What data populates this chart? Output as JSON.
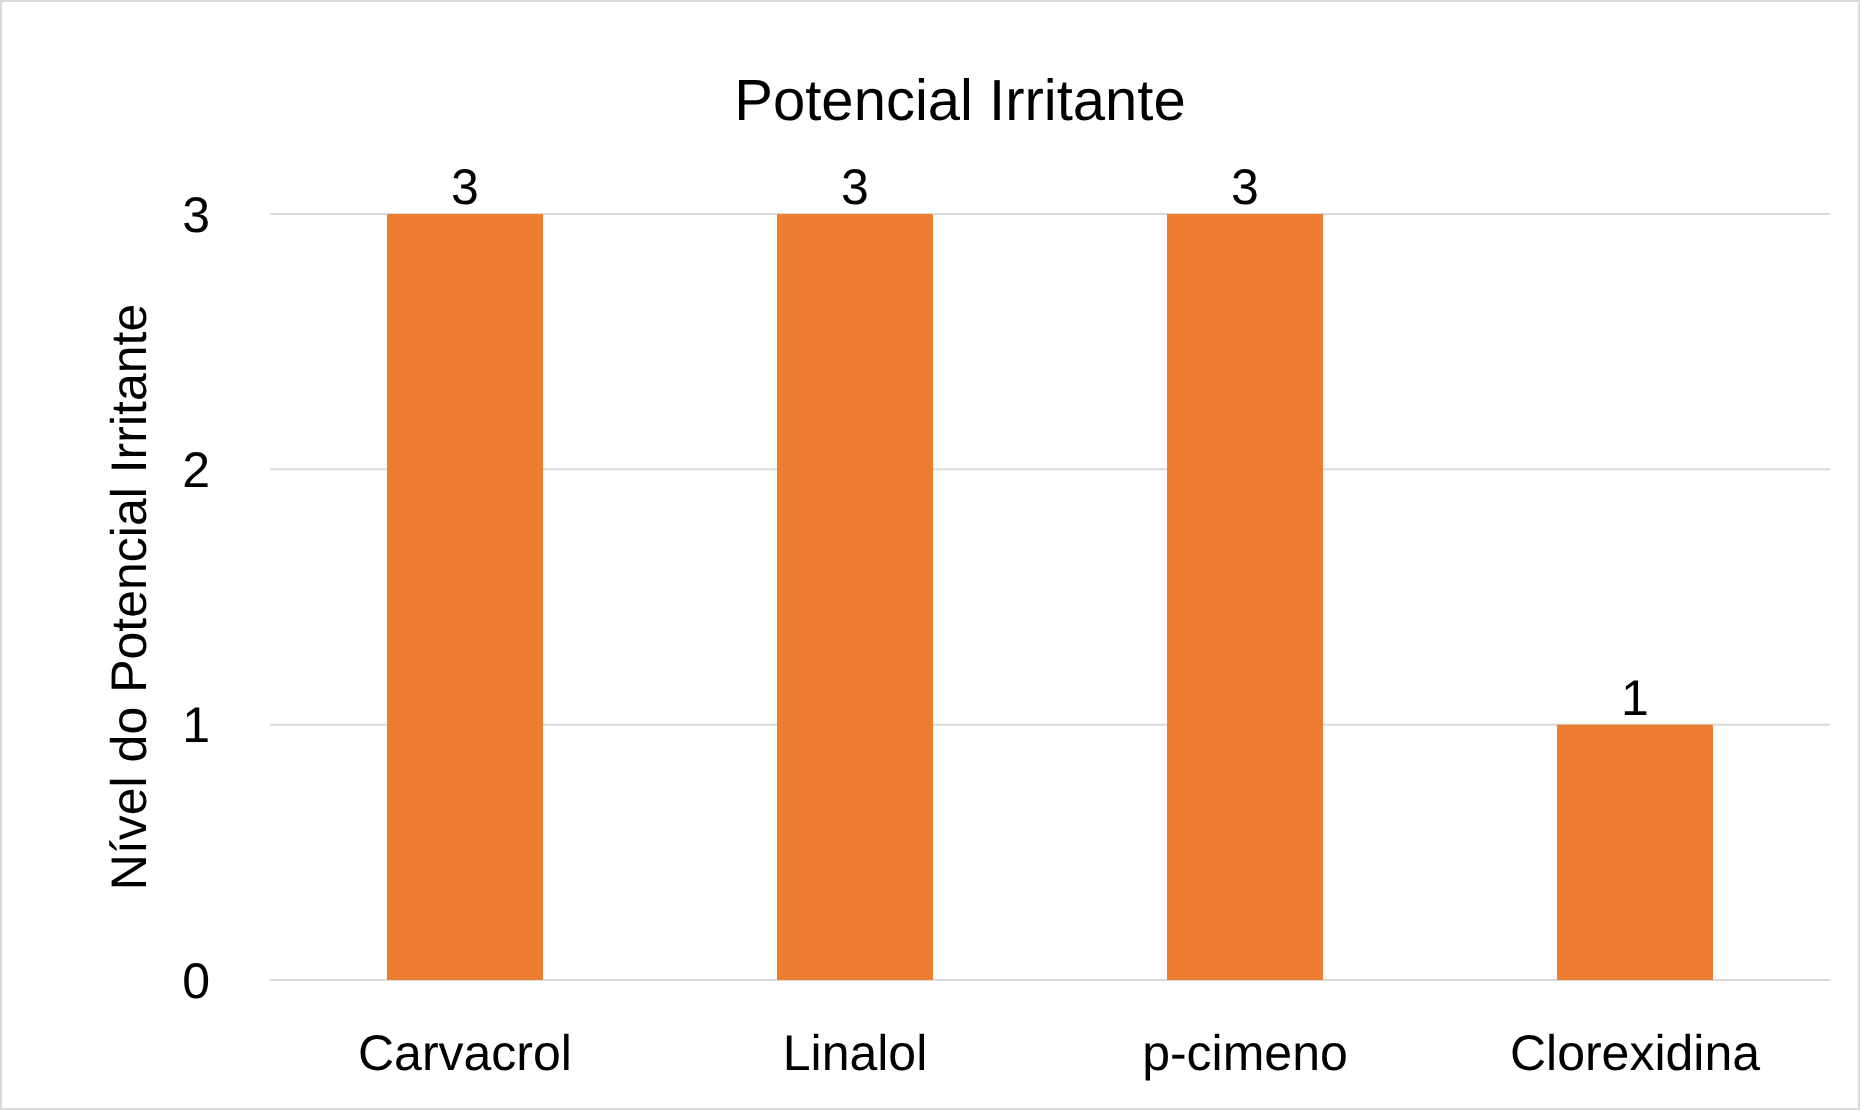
{
  "chart_data": {
    "type": "bar",
    "title": "Potencial Irritante",
    "ylabel": "Nível do Potencial Irritante",
    "categories": [
      "Carvacrol",
      "Linalol",
      "p-cimeno",
      "Clorexidina"
    ],
    "values": [
      3,
      3,
      3,
      1
    ],
    "color": "#ed7d31",
    "ylim": [
      0,
      3
    ],
    "yticks": [
      0,
      1,
      2,
      3
    ],
    "grid": "y",
    "data_labels": true
  }
}
